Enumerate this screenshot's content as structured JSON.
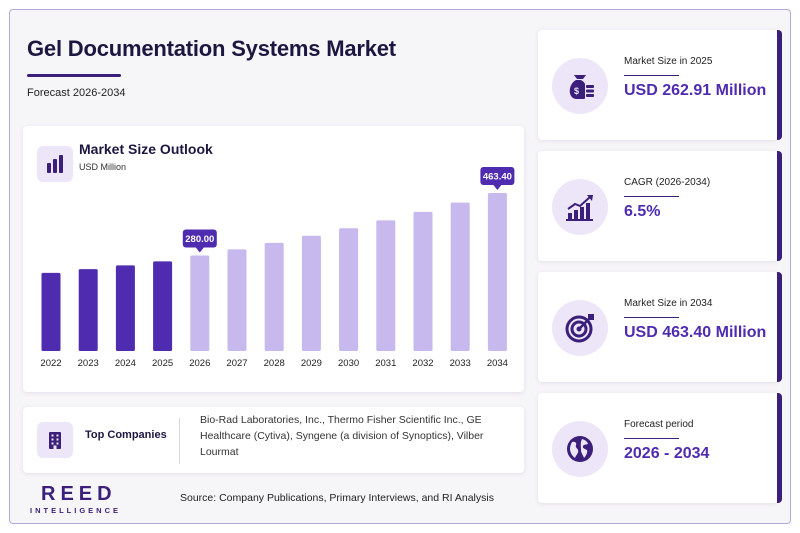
{
  "header": {
    "title": "Gel Documentation Systems Market",
    "subtitle": "Forecast 2026-2034"
  },
  "chart_panel": {
    "title": "Market Size Outlook",
    "unit": "USD Million"
  },
  "chart_data": {
    "type": "bar",
    "title": "Market Size Outlook",
    "ylabel": "USD Million",
    "categories": [
      "2022",
      "2023",
      "2024",
      "2025",
      "2026",
      "2027",
      "2028",
      "2029",
      "2030",
      "2031",
      "2032",
      "2033",
      "2034"
    ],
    "values": [
      229,
      240,
      251,
      263,
      280,
      298,
      317,
      338,
      360,
      383,
      408,
      435,
      463.4
    ],
    "callouts": [
      {
        "category": "2026",
        "label": "280.00"
      },
      {
        "category": "2034",
        "label": "463.40"
      }
    ],
    "historical_color": "#4f2bb0",
    "forecast_color": "#c7b8ee",
    "grid": false,
    "legend": "none"
  },
  "companies": {
    "label": "Top Companies",
    "text": "Bio-Rad Laboratories, Inc., Thermo Fisher Scientific Inc., GE Healthcare (Cytiva), Syngene (a division of Synoptics), Vilber Lourmat"
  },
  "stats": [
    {
      "label": "Market Size in 2025",
      "value": "USD 262.91 Million",
      "icon": "money-bag-icon"
    },
    {
      "label": "CAGR (2026-2034)",
      "value": "6.5%",
      "icon": "growth-chart-icon"
    },
    {
      "label": "Market Size in 2034",
      "value": "USD 463.40 Million",
      "icon": "target-icon"
    },
    {
      "label": "Forecast period",
      "value": "2026 - 2034",
      "icon": "globe-icon"
    }
  ],
  "footer": {
    "logo_main": "REED",
    "logo_sub": "INTELLIGENCE",
    "source": "Source: Company Publications, Primary Interviews, and RI Analysis"
  },
  "colors": {
    "accent": "#3b1f7a",
    "value_text": "#4f2bb0",
    "icon_bg": "#ede6f8"
  }
}
